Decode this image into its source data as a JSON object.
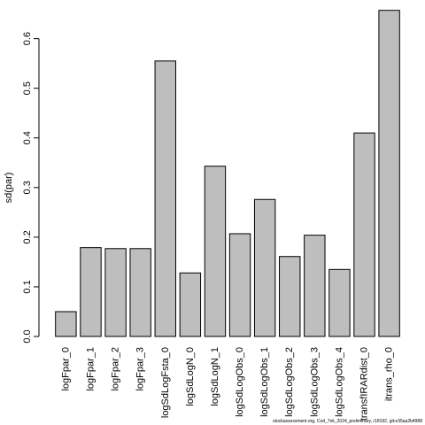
{
  "chart_data": {
    "type": "bar",
    "ylabel": "sd(par)",
    "ylim": [
      0,
      0.66
    ],
    "yticks": [
      0.0,
      0.1,
      0.2,
      0.3,
      0.4,
      0.5,
      0.6
    ],
    "ytick_labels": [
      "0.0",
      "0.1",
      "0.2",
      "0.3",
      "0.4",
      "0.5",
      "0.6"
    ],
    "categories": [
      "logFpar_0",
      "logFpar_1",
      "logFpar_2",
      "logFpar_3",
      "logSdLogFsta_0",
      "logSdLogN_0",
      "logSdLogN_1",
      "logSdLogObs_0",
      "logSdLogObs_1",
      "logSdLogObs_2",
      "logSdLogObs_3",
      "logSdLogObs_4",
      "transfIRARdist_0",
      "itrans_rho_0"
    ],
    "values": [
      0.05,
      0.179,
      0.177,
      0.177,
      0.555,
      0.128,
      0.343,
      0.207,
      0.276,
      0.161,
      0.204,
      0.135,
      0.41,
      0.657
    ],
    "bar_fill": "#bebebe",
    "bar_stroke": "#000000",
    "grid": false
  },
  "footer": {
    "text": "stockassessment.org, Cod_7ek_2024_preliminary, r18192, git:e35aa2b4988"
  }
}
